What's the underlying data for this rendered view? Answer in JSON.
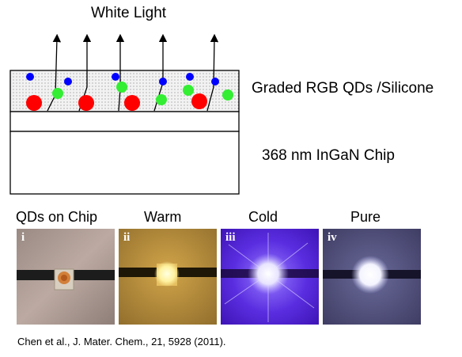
{
  "diagram": {
    "title": "White Light",
    "layer_label": "Graded RGB QDs /Silicone",
    "chip_label": "368 nm InGaN Chip",
    "colors": {
      "red_qd": "#ff0000",
      "green_qd": "#33ee33",
      "blue_qd": "#0000ff",
      "layer_fill": "#eeeeee"
    }
  },
  "photos": [
    {
      "caption": "QDs on Chip",
      "numeral": "i"
    },
    {
      "caption": "Warm",
      "numeral": "ii"
    },
    {
      "caption": "Cold",
      "numeral": "iii"
    },
    {
      "caption": "Pure",
      "numeral": "iv"
    }
  ],
  "citation": "Chen et al., J. Mater. Chem., 21, 5928 (2011)."
}
